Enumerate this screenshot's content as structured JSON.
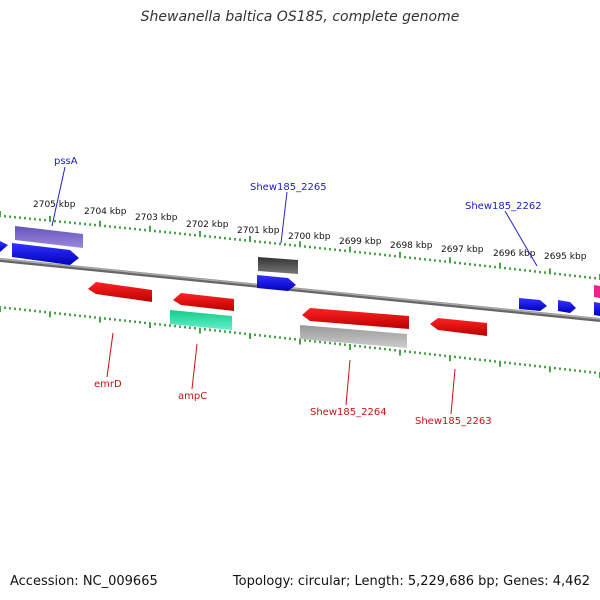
{
  "title": "Shewanella baltica OS185, complete genome",
  "footer": {
    "accession": "Accession: NC_009665",
    "topology": "Topology: circular; Length: 5,229,686 bp; Genes: 4,462"
  },
  "scale_labels": [
    "2705 kbp",
    "2704 kbp",
    "2703 kbp",
    "2702 kbp",
    "2701 kbp",
    "2700 kbp",
    "2699 kbp",
    "2698 kbp",
    "2697 kbp",
    "2696 kbp",
    "2695 kbp"
  ],
  "forward_labels": [
    "pssA",
    "Shew185_2265",
    "Shew185_2262"
  ],
  "reverse_labels": [
    "emrD",
    "ampC",
    "Shew185_2264",
    "Shew185_2263"
  ],
  "colors": {
    "forward_gene": "#1010ee",
    "forward_label": "#1a1acc",
    "reverse_gene": "#ee1111",
    "reverse_label": "#cc1111",
    "backbone": "#888888",
    "tick": "#1a8a1a",
    "purple_gene": "#7766cc",
    "gray_gene": "#aaaaaa",
    "dark_gene": "#555555",
    "teal_gene": "#22ddaa",
    "pink_gene": "#ee2288"
  }
}
